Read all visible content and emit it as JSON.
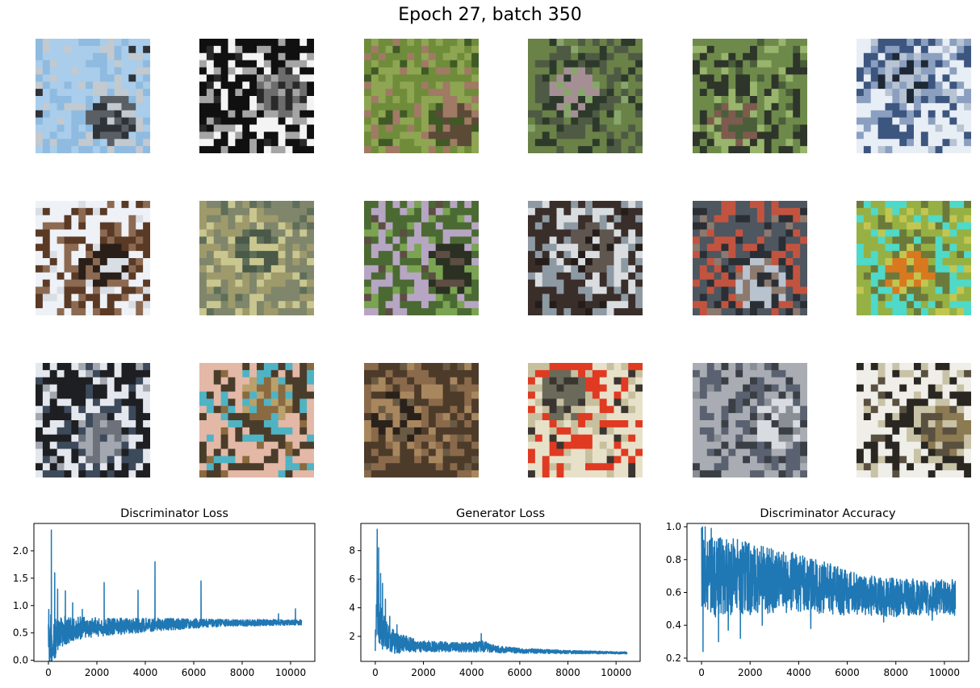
{
  "figure": {
    "title": "Epoch 27, batch 350"
  },
  "image_grid": {
    "rows": 3,
    "cols": 6,
    "samples": [
      {
        "row": 0,
        "col": 0,
        "palette": [
          "#a9cdea",
          "#8fbbe0",
          "#5a5f66",
          "#c2c9cf",
          "#2f3337"
        ]
      },
      {
        "row": 0,
        "col": 1,
        "palette": [
          "#101010",
          "#f4f4f4",
          "#6d6d6d",
          "#a5a5a5",
          "#2a2a2a"
        ]
      },
      {
        "row": 0,
        "col": 2,
        "palette": [
          "#6f8c3a",
          "#8ea552",
          "#5b4a36",
          "#a07a64",
          "#3f5a25"
        ]
      },
      {
        "row": 0,
        "col": 3,
        "palette": [
          "#6a8148",
          "#4f5a44",
          "#a58f95",
          "#2d3a2b",
          "#88a66c"
        ]
      },
      {
        "row": 0,
        "col": 4,
        "palette": [
          "#6e8a4a",
          "#2e352a",
          "#7d5b4e",
          "#99b46c",
          "#4a5e3a"
        ]
      },
      {
        "row": 0,
        "col": 5,
        "palette": [
          "#e8eef5",
          "#3d567f",
          "#1f2935",
          "#8ba0c0",
          "#b8c4d3"
        ]
      },
      {
        "row": 1,
        "col": 0,
        "palette": [
          "#eef1f6",
          "#5a3a25",
          "#2a1f18",
          "#8c6a52",
          "#d9dde4"
        ]
      },
      {
        "row": 1,
        "col": 1,
        "palette": [
          "#7f866b",
          "#9f9a6c",
          "#4b5948",
          "#c9c78f",
          "#5e6e58"
        ]
      },
      {
        "row": 1,
        "col": 2,
        "palette": [
          "#4b6a33",
          "#b7a6c3",
          "#2a3122",
          "#7aa352",
          "#5d4d43"
        ]
      },
      {
        "row": 1,
        "col": 3,
        "palette": [
          "#3a2e2a",
          "#8e9aa3",
          "#5f564f",
          "#d9dde0",
          "#241d1a"
        ]
      },
      {
        "row": 1,
        "col": 4,
        "palette": [
          "#4e5660",
          "#c2543f",
          "#b9c3cf",
          "#2a2f36",
          "#8d7a6f"
        ]
      },
      {
        "row": 1,
        "col": 5,
        "palette": [
          "#97b043",
          "#4fd9c8",
          "#d8791f",
          "#6b7a3a",
          "#c2c651"
        ]
      },
      {
        "row": 2,
        "col": 0,
        "palette": [
          "#1e1f22",
          "#e4e8ee",
          "#6c717a",
          "#3d4a5c",
          "#a3a8b0"
        ]
      },
      {
        "row": 2,
        "col": 1,
        "palette": [
          "#e3b8a7",
          "#4a3c2a",
          "#b9a06d",
          "#4fb3c4",
          "#8a6a3e"
        ]
      },
      {
        "row": 2,
        "col": 2,
        "palette": [
          "#4d3b2a",
          "#8a6a4a",
          "#2a221a",
          "#a8875f",
          "#6a5a44"
        ]
      },
      {
        "row": 2,
        "col": 3,
        "palette": [
          "#e8e1c9",
          "#e03a22",
          "#6a6a5a",
          "#c7c09f",
          "#3a3530"
        ]
      },
      {
        "row": 2,
        "col": 4,
        "palette": [
          "#a9adb3",
          "#5a6170",
          "#d8dbe0",
          "#3a3f46",
          "#8a8f96"
        ]
      },
      {
        "row": 2,
        "col": 5,
        "palette": [
          "#efeee8",
          "#2a2722",
          "#8c7a52",
          "#c8c2a6",
          "#5a5040"
        ]
      }
    ]
  },
  "chart_data": [
    {
      "type": "line",
      "title": "Discriminator Loss",
      "xlabel": "",
      "ylabel": "",
      "xlim": [
        -600,
        11000
      ],
      "ylim": [
        -0.02,
        2.5
      ],
      "xticks": [
        0,
        2000,
        4000,
        6000,
        8000,
        10000
      ],
      "yticks": [
        0.0,
        0.5,
        1.0,
        1.5,
        2.0
      ],
      "grid": false,
      "line_color": "#1f77b4",
      "series": [
        {
          "x": [
            0,
            40,
            80,
            120,
            160,
            200,
            300,
            400,
            500,
            700,
            900,
            1100,
            1500,
            2000,
            2500,
            3000,
            3500,
            4000,
            4500,
            5000,
            6000,
            7000,
            8000,
            9000,
            10000,
            10450
          ],
          "y": [
            0.6,
            0.08,
            0.3,
            0.2,
            0.5,
            0.3,
            0.4,
            0.45,
            0.5,
            0.55,
            0.55,
            0.58,
            0.6,
            0.6,
            0.62,
            0.62,
            0.63,
            0.64,
            0.65,
            0.66,
            0.67,
            0.68,
            0.68,
            0.69,
            0.69,
            0.69
          ],
          "noise": [
            0.55,
            0.7,
            0.6,
            0.55,
            0.45,
            0.4,
            0.35,
            0.3,
            0.28,
            0.26,
            0.24,
            0.22,
            0.2,
            0.18,
            0.16,
            0.15,
            0.14,
            0.13,
            0.12,
            0.11,
            0.09,
            0.07,
            0.06,
            0.06,
            0.05,
            0.05
          ],
          "spikes": [
            [
              120,
              2.38
            ],
            [
              260,
              1.6
            ],
            [
              380,
              1.3
            ],
            [
              700,
              1.27
            ],
            [
              1000,
              1.05
            ],
            [
              1400,
              0.93
            ],
            [
              2300,
              1.42
            ],
            [
              3700,
              1.28
            ],
            [
              4400,
              1.8
            ],
            [
              6300,
              1.45
            ],
            [
              9500,
              0.85
            ],
            [
              10200,
              0.94
            ]
          ]
        }
      ]
    },
    {
      "type": "line",
      "title": "Generator Loss",
      "xlabel": "",
      "ylabel": "",
      "xlim": [
        -600,
        11000
      ],
      "ylim": [
        0.25,
        9.9
      ],
      "xticks": [
        0,
        2000,
        4000,
        6000,
        8000,
        10000
      ],
      "yticks": [
        2,
        4,
        6,
        8
      ],
      "grid": false,
      "line_color": "#1f77b4",
      "series": [
        {
          "x": [
            0,
            40,
            80,
            120,
            160,
            200,
            300,
            400,
            500,
            600,
            800,
            1000,
            1500,
            2000,
            3000,
            4000,
            4500,
            5000,
            6000,
            7000,
            8000,
            9000,
            10000,
            10450
          ],
          "y": [
            1.0,
            3.0,
            4.5,
            3.8,
            3.2,
            2.8,
            2.4,
            2.2,
            2.0,
            1.8,
            1.6,
            1.5,
            1.4,
            1.3,
            1.25,
            1.25,
            1.3,
            1.1,
            1.0,
            0.95,
            0.9,
            0.88,
            0.85,
            0.85
          ],
          "noise": [
            1.0,
            2.5,
            2.2,
            2.0,
            1.8,
            1.6,
            1.3,
            1.1,
            1.0,
            0.9,
            0.8,
            0.7,
            0.5,
            0.4,
            0.35,
            0.35,
            0.4,
            0.25,
            0.18,
            0.15,
            0.12,
            0.1,
            0.08,
            0.08
          ],
          "spikes": [
            [
              80,
              9.5
            ],
            [
              140,
              8.2
            ],
            [
              220,
              6.4
            ],
            [
              300,
              5.7
            ],
            [
              420,
              4.6
            ],
            [
              600,
              3.4
            ],
            [
              900,
              2.8
            ],
            [
              4400,
              2.2
            ]
          ]
        }
      ]
    },
    {
      "type": "line",
      "title": "Discriminator Accuracy",
      "xlabel": "",
      "ylabel": "",
      "xlim": [
        -600,
        11000
      ],
      "ylim": [
        0.18,
        1.02
      ],
      "xticks": [
        0,
        2000,
        4000,
        6000,
        8000,
        10000
      ],
      "yticks": [
        0.2,
        0.4,
        0.6,
        0.8,
        1.0
      ],
      "grid": false,
      "line_color": "#1f77b4",
      "series": [
        {
          "x": [
            0,
            100,
            300,
            600,
            1000,
            1500,
            2000,
            3000,
            4000,
            5000,
            6000,
            7000,
            8000,
            9000,
            10000,
            10450
          ],
          "y": [
            0.75,
            0.72,
            0.7,
            0.7,
            0.7,
            0.7,
            0.68,
            0.67,
            0.66,
            0.63,
            0.6,
            0.58,
            0.57,
            0.57,
            0.57,
            0.57
          ],
          "noise": [
            0.25,
            0.26,
            0.25,
            0.25,
            0.24,
            0.23,
            0.22,
            0.2,
            0.18,
            0.16,
            0.14,
            0.12,
            0.12,
            0.11,
            0.11,
            0.11
          ],
          "spikes": [
            [
              60,
              0.24
            ],
            [
              40,
              1.0
            ],
            [
              150,
              1.0
            ],
            [
              400,
              0.99
            ],
            [
              700,
              0.3
            ],
            [
              1100,
              0.37
            ],
            [
              1600,
              0.32
            ],
            [
              2500,
              0.4
            ],
            [
              4500,
              0.38
            ],
            [
              7500,
              0.42
            ],
            [
              9500,
              0.43
            ]
          ]
        }
      ]
    }
  ]
}
